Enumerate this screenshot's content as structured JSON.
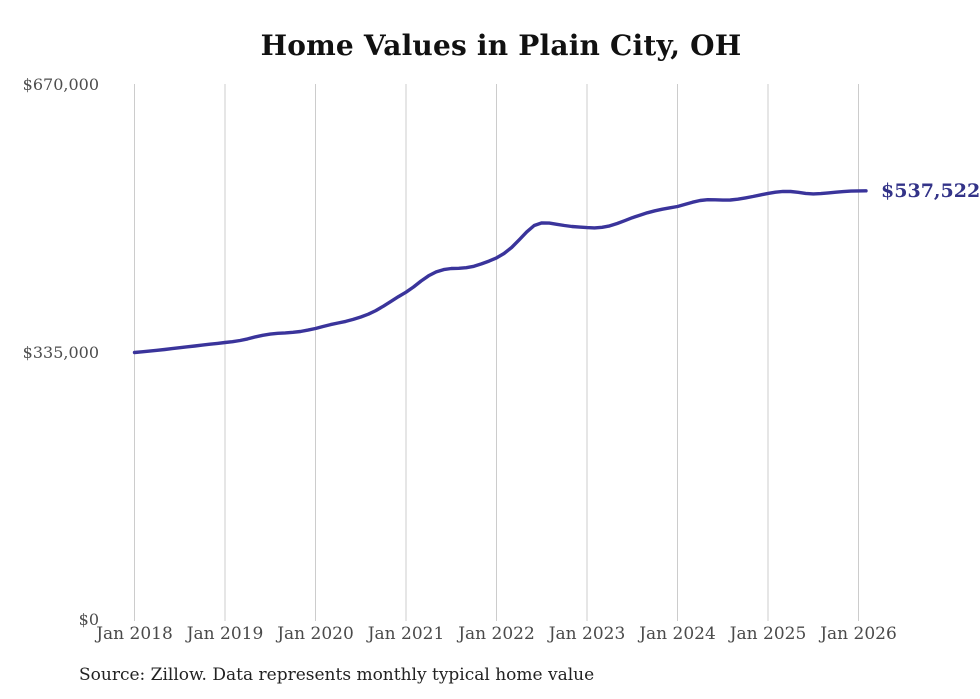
{
  "chart_data": {
    "type": "line",
    "title": "Home Values in Plain City, OH",
    "series_name": "Monthly typical home value",
    "unit": "USD",
    "source_note": "Source: Zillow. Data represents monthly typical home value",
    "end_annotation": "$537,522",
    "end_value": 537522,
    "x_start_month": "Jan 2018",
    "x_end_month": "Feb 2026",
    "x_tick_labels": [
      "Jan 2018",
      "Jan 2019",
      "Jan 2020",
      "Jan 2021",
      "Jan 2022",
      "Jan 2023",
      "Jan 2024",
      "Jan 2025",
      "Jan 2026"
    ],
    "y_tick_labels": [
      "$670,000",
      "$335,000",
      "$0"
    ],
    "y_tick_values": [
      670000,
      335000,
      0
    ],
    "ylim": [
      0,
      670000
    ],
    "grid": "vertical-only",
    "legend": "none",
    "values_monthly": [
      335000,
      335900,
      336800,
      337800,
      338800,
      339900,
      341000,
      342100,
      343200,
      344300,
      345400,
      346400,
      347500,
      348500,
      350000,
      352000,
      354500,
      356500,
      358000,
      359000,
      359600,
      360300,
      361300,
      363000,
      365000,
      367500,
      370000,
      372000,
      374000,
      376500,
      379500,
      383000,
      387500,
      393000,
      399000,
      405000,
      410500,
      417000,
      424500,
      431000,
      436000,
      438800,
      440200,
      440500,
      441200,
      443000,
      446000,
      449500,
      453500,
      459000,
      466500,
      476000,
      486000,
      494000,
      497300,
      497000,
      495500,
      494000,
      492800,
      492000,
      491400,
      491000,
      491800,
      493500,
      496500,
      500000,
      503800,
      507000,
      510000,
      512500,
      514500,
      516200,
      517800,
      520500,
      523200,
      525300,
      526300,
      526200,
      525800,
      526000,
      527000,
      528600,
      530400,
      532400,
      534300,
      535800,
      536800,
      536600,
      535600,
      534300,
      533600,
      534000,
      534900,
      535800,
      536500,
      537100,
      537350,
      537522
    ],
    "colors": {
      "line": "#3a349b",
      "annotation": "#333388",
      "grid": "#cccccc",
      "axis_text": "#4a4a4a",
      "title": "#111111",
      "source": "#222222"
    }
  }
}
